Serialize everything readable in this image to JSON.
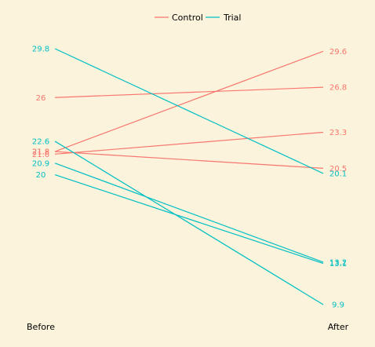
{
  "chart_data": {
    "type": "line",
    "categories": [
      "Before",
      "After"
    ],
    "title": "",
    "xlabel": "",
    "ylabel": "",
    "ylim": [
      8,
      31
    ],
    "legend": {
      "placement": "top-center",
      "entries": [
        "Control",
        "Trial"
      ]
    },
    "colors": {
      "Control": "#f8766d",
      "Trial": "#00bfc4"
    },
    "series": [
      {
        "group": "Control",
        "values": [
          21.8,
          29.6
        ],
        "labels": [
          "21.8",
          "29.6"
        ]
      },
      {
        "group": "Control",
        "values": [
          26,
          26.8
        ],
        "labels": [
          "26",
          "26.8"
        ]
      },
      {
        "group": "Control",
        "values": [
          21.6,
          23.3
        ],
        "labels": [
          "21.6",
          "23.3"
        ]
      },
      {
        "group": "Control",
        "values": [
          21.8,
          20.5
        ],
        "labels": [
          "21.8",
          "20.5"
        ]
      },
      {
        "group": "Trial",
        "values": [
          29.8,
          20.1
        ],
        "labels": [
          "29.8",
          "20.1"
        ]
      },
      {
        "group": "Trial",
        "values": [
          22.6,
          9.9
        ],
        "labels": [
          "22.6",
          "9.9"
        ]
      },
      {
        "group": "Trial",
        "values": [
          20.9,
          13.2
        ],
        "labels": [
          "20.9",
          "13.2"
        ]
      },
      {
        "group": "Trial",
        "values": [
          20,
          13.1
        ],
        "labels": [
          "20",
          "13.1"
        ]
      }
    ],
    "grid": false
  }
}
